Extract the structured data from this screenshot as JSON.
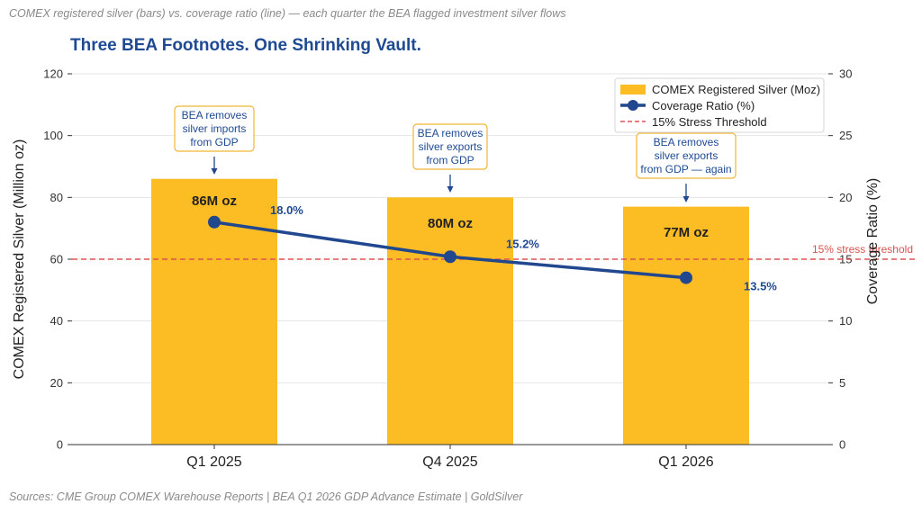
{
  "header_note": "COMEX registered silver (bars) vs. coverage ratio (line) — each quarter the BEA flagged investment silver flows",
  "sources": "Sources: CME Group COMEX Warehouse Reports  |  BEA Q1 2026 GDP Advance Estimate  |  GoldSilver",
  "colors": {
    "bar": "#fbbc24",
    "line": "#21478f",
    "threshold": "#e05252",
    "title": "#1f4a93",
    "callout_border": "#f2b632"
  },
  "chart_data": {
    "type": "bar",
    "title": "Three BEA Footnotes. One Shrinking Vault.",
    "categories": [
      "Q1 2025",
      "Q4 2025",
      "Q1 2026"
    ],
    "series": [
      {
        "name": "COMEX Registered Silver (Moz)",
        "type": "bar",
        "axis": "left",
        "values": [
          86,
          80,
          77
        ],
        "labels": [
          "86M oz",
          "80M oz",
          "77M oz"
        ]
      },
      {
        "name": "Coverage Ratio (%)",
        "type": "line",
        "axis": "right",
        "values": [
          18.0,
          15.2,
          13.5
        ],
        "labels": [
          "18.0%",
          "15.2%",
          "13.5%"
        ]
      }
    ],
    "threshold": {
      "name": "15% Stress Threshold",
      "value": 15,
      "axis": "right",
      "label": "15% stress threshold"
    },
    "ylabel": "COMEX Registered Silver (Million oz)",
    "ylabel_right": "Coverage Ratio (%)",
    "ylim": [
      0,
      120
    ],
    "ylim_right": [
      0,
      30
    ],
    "yticks": [
      "0",
      "20",
      "40",
      "60",
      "80",
      "100",
      "120"
    ],
    "yticks_right": [
      "0",
      "5",
      "10",
      "15",
      "20",
      "25",
      "30"
    ],
    "legend_position": "top-right",
    "grid": true,
    "annotations": [
      {
        "category": "Q1 2025",
        "lines": [
          "BEA removes",
          "silver imports",
          "from GDP"
        ]
      },
      {
        "category": "Q4 2025",
        "lines": [
          "BEA removes",
          "silver exports",
          "from GDP"
        ]
      },
      {
        "category": "Q1 2026",
        "lines": [
          "BEA removes",
          "silver exports",
          "from GDP — again"
        ]
      }
    ]
  }
}
